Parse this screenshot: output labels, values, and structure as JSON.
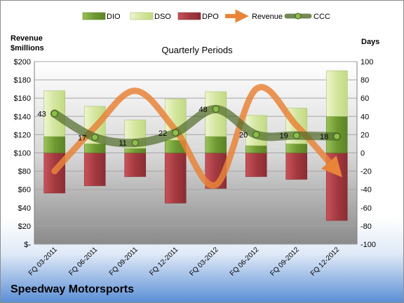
{
  "company": "Speedway Motorsports",
  "chart_data": {
    "type": "bar",
    "title": "Quarterly Periods",
    "left_axis_label": [
      "Revenue",
      "$millions"
    ],
    "right_axis_label": "Days",
    "categories": [
      "FQ 03-2011",
      "FQ 06-2011",
      "FQ 09-2011",
      "FQ 12-2011",
      "FQ 03-2012",
      "FQ 06-2012",
      "FQ 09-2012",
      "FQ 12-2012"
    ],
    "left_ticks": [
      "$200",
      "$180",
      "$160",
      "$140",
      "$120",
      "$100",
      "$80",
      "$60",
      "$40",
      "$20",
      "$-"
    ],
    "right_ticks": [
      "100",
      "80",
      "60",
      "40",
      "20",
      "0",
      "-20",
      "-40",
      "-60",
      "-80",
      "-100"
    ],
    "left_ylim": [
      0,
      200
    ],
    "right_ylim": [
      -100,
      100
    ],
    "series": [
      {
        "name": "DIO",
        "axis": "right",
        "values": [
          18,
          10,
          5,
          14,
          18,
          8,
          10,
          40
        ]
      },
      {
        "name": "DSO",
        "axis": "right",
        "values": [
          50,
          41,
          31,
          45,
          49,
          33,
          39,
          50
        ]
      },
      {
        "name": "DPO",
        "axis": "right",
        "values": [
          -44,
          -36,
          -26,
          -55,
          -39,
          -26,
          -29,
          -74
        ]
      },
      {
        "name": "Revenue",
        "axis": "left",
        "values": [
          80,
          128,
          168,
          125,
          65,
          170,
          130,
          80
        ]
      },
      {
        "name": "CCC",
        "axis": "right",
        "values": [
          43,
          17,
          11,
          22,
          48,
          20,
          19,
          18
        ]
      }
    ],
    "ccc_labels": [
      "43",
      "17",
      "11",
      "22",
      "48",
      "20",
      "19",
      "18"
    ],
    "colors": {
      "dio": "#77a33a",
      "dso": "#d8e8a8",
      "dpo": "#a33a40",
      "revenue": "#e8843a",
      "ccc": "#4f6b2a",
      "plot_bg_top": "#ffffff",
      "plot_bg_bottom": "#8f8f8f"
    },
    "grid": true,
    "legend_position": "top"
  }
}
